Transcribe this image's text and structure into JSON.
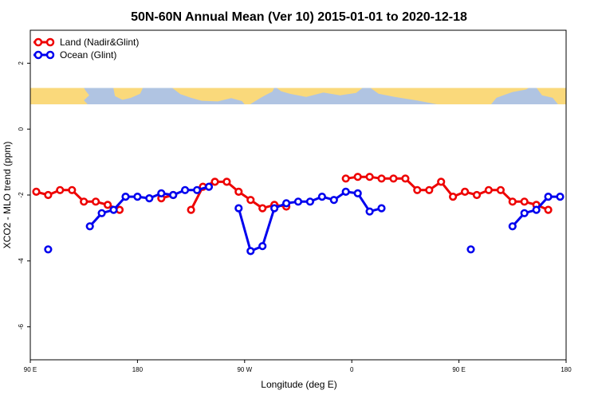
{
  "chart_data": {
    "type": "line",
    "title": "50N-60N Annual Mean (Ver 10)   2015-01-01 to 2020-12-18",
    "xlabel": "Longitude (deg E)",
    "ylabel": "XCO2 - MLO trend (ppm)",
    "xlim": [
      90,
      450
    ],
    "ylim": [
      -7,
      3
    ],
    "x_ticks": [
      {
        "value": 90,
        "label": "90 E"
      },
      {
        "value": 162,
        "label": "180"
      },
      {
        "value": 234,
        "label": "90 W"
      },
      {
        "value": 306,
        "label": "0"
      },
      {
        "value": 378,
        "label": "90 E"
      },
      {
        "value": 450,
        "label": "180"
      }
    ],
    "y_ticks": [
      2,
      0,
      -2,
      -4,
      -6
    ],
    "legend_position": "top-left",
    "map_band": {
      "y_from": 0.75,
      "y_to": 1.25,
      "ocean_color": "#b0c4e2",
      "land_color": "#fad97b"
    },
    "series": [
      {
        "name": "Land (Nadir&Glint)",
        "color": "#ee0000",
        "points": [
          [
            94,
            -1.9
          ],
          [
            102,
            -2.0
          ],
          [
            110,
            -1.85
          ],
          [
            118,
            -1.85
          ],
          [
            126,
            -2.2
          ],
          [
            134,
            -2.2
          ],
          [
            142,
            -2.3
          ],
          [
            150,
            -2.45
          ],
          null,
          [
            178,
            -2.1
          ],
          [
            186,
            -2.0
          ],
          null,
          [
            198,
            -2.45
          ],
          [
            206,
            -1.75
          ],
          [
            214,
            -1.6
          ],
          [
            222,
            -1.6
          ],
          [
            230,
            -1.9
          ],
          [
            238,
            -2.15
          ],
          [
            246,
            -2.4
          ],
          [
            254,
            -2.3
          ],
          [
            262,
            -2.35
          ],
          null,
          [
            302,
            -1.5
          ],
          [
            310,
            -1.45
          ],
          [
            318,
            -1.45
          ],
          [
            326,
            -1.5
          ],
          [
            334,
            -1.5
          ],
          [
            342,
            -1.5
          ],
          [
            350,
            -1.85
          ],
          [
            358,
            -1.85
          ],
          [
            366,
            -1.6
          ],
          [
            374,
            -2.05
          ],
          [
            382,
            -1.9
          ],
          [
            390,
            -2.0
          ],
          [
            398,
            -1.85
          ],
          [
            406,
            -1.85
          ],
          [
            414,
            -2.2
          ],
          [
            422,
            -2.2
          ],
          [
            430,
            -2.3
          ],
          [
            438,
            -2.45
          ]
        ]
      },
      {
        "name": "Ocean (Glint)",
        "color": "#0000ee",
        "points": [
          [
            102,
            -3.65
          ],
          null,
          [
            130,
            -2.95
          ],
          [
            138,
            -2.55
          ],
          [
            146,
            -2.45
          ],
          [
            154,
            -2.05
          ],
          [
            162,
            -2.05
          ],
          [
            170,
            -2.1
          ],
          [
            178,
            -1.95
          ],
          [
            186,
            -2.0
          ],
          [
            194,
            -1.85
          ],
          [
            202,
            -1.85
          ],
          [
            210,
            -1.75
          ],
          null,
          [
            230,
            -2.4
          ],
          [
            238,
            -3.7
          ],
          [
            246,
            -3.55
          ],
          [
            254,
            -2.4
          ],
          [
            262,
            -2.25
          ],
          [
            270,
            -2.2
          ],
          [
            278,
            -2.2
          ],
          [
            286,
            -2.05
          ],
          [
            294,
            -2.15
          ],
          [
            302,
            -1.9
          ],
          [
            310,
            -1.95
          ],
          [
            318,
            -2.5
          ],
          [
            326,
            -2.4
          ],
          null,
          [
            386,
            -3.65
          ],
          null,
          [
            414,
            -2.95
          ],
          [
            422,
            -2.55
          ],
          [
            430,
            -2.45
          ],
          [
            438,
            -2.05
          ],
          [
            446,
            -2.05
          ]
        ]
      }
    ]
  }
}
